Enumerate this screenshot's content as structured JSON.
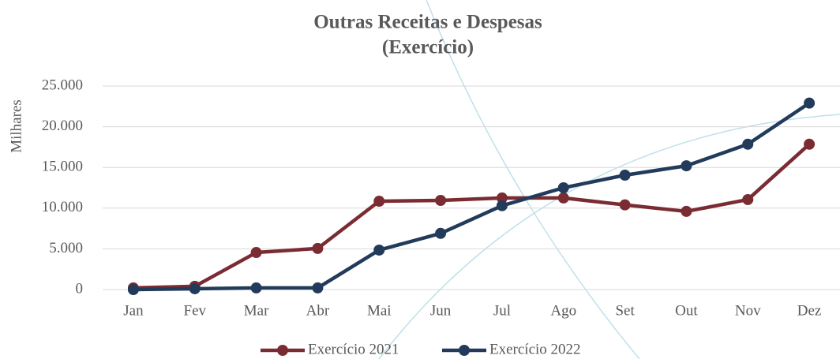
{
  "chart_data": {
    "type": "line",
    "title": "Outras Receitas e Despesas",
    "subtitle": "(Exercício)",
    "ylabel": "Milhares",
    "categories": [
      "Jan",
      "Fev",
      "Mar",
      "Abr",
      "Mai",
      "Jun",
      "Jul",
      "Ago",
      "Set",
      "Out",
      "Nov",
      "Dez"
    ],
    "series": [
      {
        "name": "Exercício 2021",
        "color": "#7b2c33",
        "values": [
          200,
          400,
          4550,
          5050,
          10850,
          10950,
          11250,
          11250,
          10400,
          9600,
          11050,
          17850
        ]
      },
      {
        "name": "Exercício 2022",
        "color": "#233b5b",
        "values": [
          0,
          100,
          200,
          200,
          4850,
          6900,
          10300,
          12500,
          14050,
          15200,
          17850,
          22900
        ]
      }
    ],
    "ylim": [
      0,
      25000
    ],
    "yticks": [
      0,
      {
        "value": 5000,
        "label": "5.000"
      },
      {
        "value": 10000,
        "label": "10.000"
      },
      {
        "value": 15000,
        "label": "15.000"
      },
      {
        "value": 20000,
        "label": "20.000"
      },
      {
        "value": 25000,
        "label": "25.000"
      }
    ],
    "grid": true,
    "legend": "bottom"
  }
}
